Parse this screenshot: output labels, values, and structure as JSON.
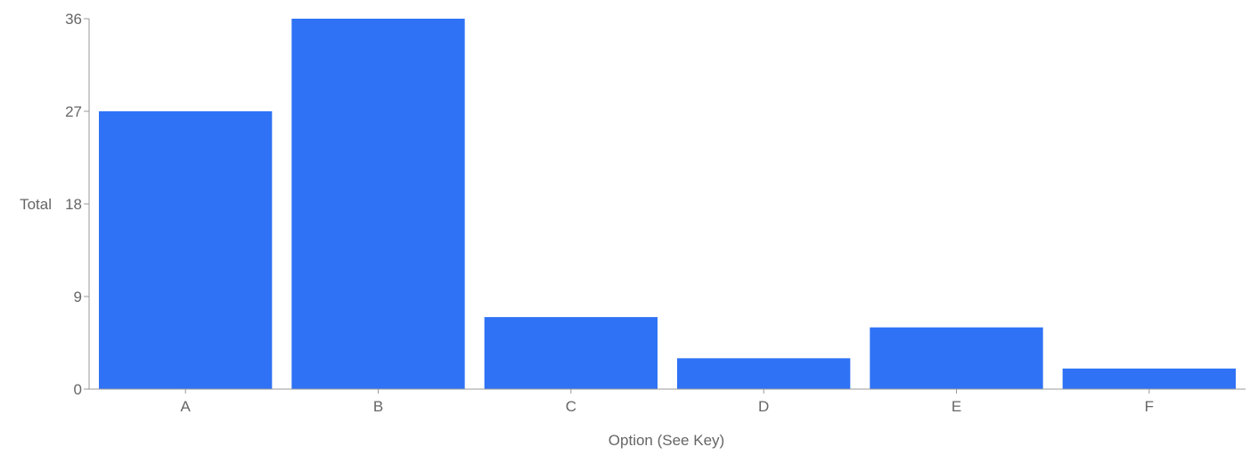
{
  "chart_data": {
    "type": "bar",
    "categories": [
      "A",
      "B",
      "C",
      "D",
      "E",
      "F"
    ],
    "values": [
      27,
      36,
      7,
      3,
      6,
      2
    ],
    "xlabel": "Option (See Key)",
    "ylabel": "Total",
    "ylim": [
      0,
      36
    ],
    "yticks": [
      0,
      9,
      18,
      27,
      36
    ],
    "grid": false,
    "bar_color": "#2f72f5",
    "axis_color": "#999999",
    "text_color": "#666666"
  }
}
